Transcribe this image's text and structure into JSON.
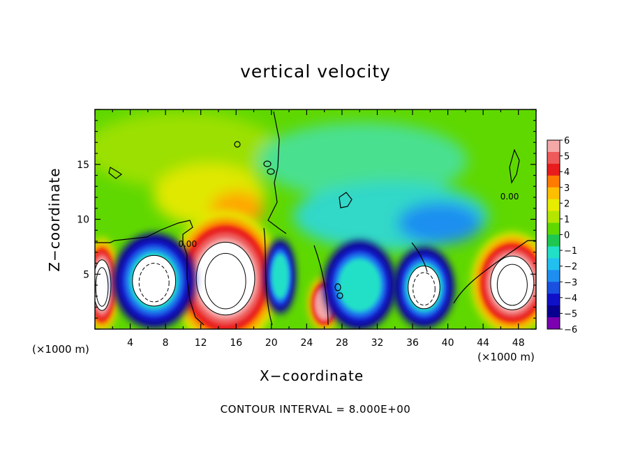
{
  "chart_data": {
    "type": "heatmap",
    "title": "vertical velocity",
    "xlabel": "X−coordinate",
    "ylabel": "Z−coordinate",
    "x_unit_left": "(×1000 m)",
    "x_unit_right": "(×1000 m)",
    "footer": "CONTOUR INTERVAL = 8.000E+00",
    "xlim": [
      0,
      50
    ],
    "ylim": [
      0,
      20
    ],
    "xticks": [
      4,
      8,
      12,
      16,
      20,
      24,
      28,
      32,
      36,
      40,
      44,
      48
    ],
    "xtick_labels": [
      "4",
      "8",
      "12",
      "16",
      "20",
      "24",
      "28",
      "32",
      "36",
      "40",
      "44",
      "48"
    ],
    "yticks": [
      5,
      10,
      15
    ],
    "ytick_labels": [
      "5",
      "10",
      "15"
    ],
    "contour_labels": [
      {
        "text": "0.00",
        "x": 10.5,
        "y": 7.5
      },
      {
        "text": "0.00",
        "x": 47,
        "y": 11.8
      }
    ],
    "colorbar": {
      "min": -6,
      "max": 6,
      "labels": [
        "6",
        "5",
        "4",
        "3",
        "2",
        "1",
        "0",
        "−1",
        "−2",
        "−3",
        "−4",
        "−5",
        "−6"
      ],
      "label_values": [
        6,
        5,
        4,
        3,
        2,
        1,
        0,
        -1,
        -2,
        -3,
        -4,
        -5,
        -6
      ],
      "colors": [
        "#f4a9a9",
        "#ee5a5a",
        "#e81c1c",
        "#ff7a00",
        "#ffbf00",
        "#e8ec00",
        "#b4e600",
        "#5fd800",
        "#1ec850",
        "#22e0c8",
        "#22c0f0",
        "#1e8ff0",
        "#1a50e0",
        "#1010c8",
        "#0a0090",
        "#7a00b0"
      ]
    },
    "features": [
      {
        "kind": "updraft",
        "x": 0.8,
        "y": 4.0,
        "rx": 1.4,
        "ry": 3.2,
        "core": 1.0
      },
      {
        "kind": "updraft",
        "x": 14.8,
        "y": 4.6,
        "rx": 4.6,
        "ry": 4.6,
        "core": 1.0
      },
      {
        "kind": "updraft",
        "x": 47.3,
        "y": 4.2,
        "rx": 3.4,
        "ry": 3.4,
        "core": 1.0
      },
      {
        "kind": "updraft",
        "x": 26.0,
        "y": 2.3,
        "rx": 1.3,
        "ry": 1.8,
        "core": 0.45
      },
      {
        "kind": "downdraft",
        "x": 6.7,
        "y": 4.4,
        "rx": 3.4,
        "ry": 3.2,
        "core": 1.0
      },
      {
        "kind": "downdraft",
        "x": 37.3,
        "y": 3.8,
        "rx": 2.5,
        "ry": 2.7,
        "core": 1.0
      },
      {
        "kind": "downdraft",
        "x": 30.0,
        "y": 4.0,
        "rx": 3.0,
        "ry": 3.0,
        "core": 0.55
      },
      {
        "kind": "downdraft",
        "x": 21.0,
        "y": 4.8,
        "rx": 1.2,
        "ry": 2.5,
        "core": 0.5
      }
    ]
  }
}
